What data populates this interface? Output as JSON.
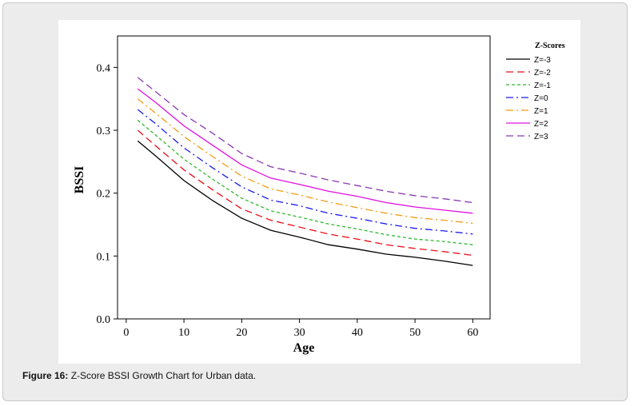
{
  "caption": {
    "label": "Figure 16:",
    "text": " Z-Score BSSI Growth Chart for Urban data."
  },
  "chart_data": {
    "type": "line",
    "xlabel": "Age",
    "ylabel": "BSSI",
    "xlim": [
      -1.5,
      63
    ],
    "ylim": [
      0,
      0.45
    ],
    "xticks": [
      0,
      10,
      20,
      30,
      40,
      50,
      60
    ],
    "xtick_labels": [
      "0",
      "10",
      "20",
      "30",
      "40",
      "50",
      "60"
    ],
    "yticks": [
      0.0,
      0.1,
      0.2,
      0.3,
      0.4
    ],
    "ytick_labels": [
      "0.0",
      "0.1",
      "0.2",
      "0.3",
      "0.4"
    ],
    "grid": false,
    "legend_title": "Z-Scores",
    "legend_position": "outside-right-top",
    "x": [
      2,
      5,
      10,
      15,
      20,
      25,
      30,
      35,
      40,
      45,
      50,
      55,
      60
    ],
    "series": [
      {
        "name": "Z=-3",
        "color": "#000000",
        "dash": "solid",
        "values": [
          0.283,
          0.26,
          0.22,
          0.188,
          0.16,
          0.141,
          0.13,
          0.118,
          0.111,
          0.103,
          0.098,
          0.092,
          0.085
        ]
      },
      {
        "name": "Z=-2",
        "color": "#e8101a",
        "dash": "long-dash",
        "values": [
          0.3,
          0.276,
          0.237,
          0.205,
          0.175,
          0.157,
          0.146,
          0.135,
          0.127,
          0.118,
          0.112,
          0.107,
          0.101
        ]
      },
      {
        "name": "Z=-1",
        "color": "#2db82d",
        "dash": "short-dash",
        "values": [
          0.316,
          0.293,
          0.254,
          0.222,
          0.192,
          0.172,
          0.162,
          0.151,
          0.143,
          0.134,
          0.127,
          0.123,
          0.118
        ]
      },
      {
        "name": "Z=0",
        "color": "#1a1aee",
        "dash": "dash-dot",
        "values": [
          0.333,
          0.311,
          0.272,
          0.24,
          0.21,
          0.189,
          0.18,
          0.168,
          0.16,
          0.151,
          0.144,
          0.14,
          0.135
        ]
      },
      {
        "name": "Z=1",
        "color": "#f39c12",
        "dash": "dash-dot",
        "values": [
          0.35,
          0.328,
          0.29,
          0.258,
          0.227,
          0.207,
          0.197,
          0.186,
          0.177,
          0.168,
          0.161,
          0.157,
          0.152
        ]
      },
      {
        "name": "Z=2",
        "color": "#e010e0",
        "dash": "solid",
        "values": [
          0.366,
          0.345,
          0.307,
          0.276,
          0.245,
          0.224,
          0.214,
          0.203,
          0.195,
          0.185,
          0.178,
          0.173,
          0.168
        ]
      },
      {
        "name": "Z=3",
        "color": "#8a3ab0",
        "dash": "long-dash",
        "values": [
          0.384,
          0.362,
          0.325,
          0.295,
          0.263,
          0.242,
          0.232,
          0.221,
          0.212,
          0.203,
          0.196,
          0.191,
          0.185
        ]
      }
    ]
  }
}
